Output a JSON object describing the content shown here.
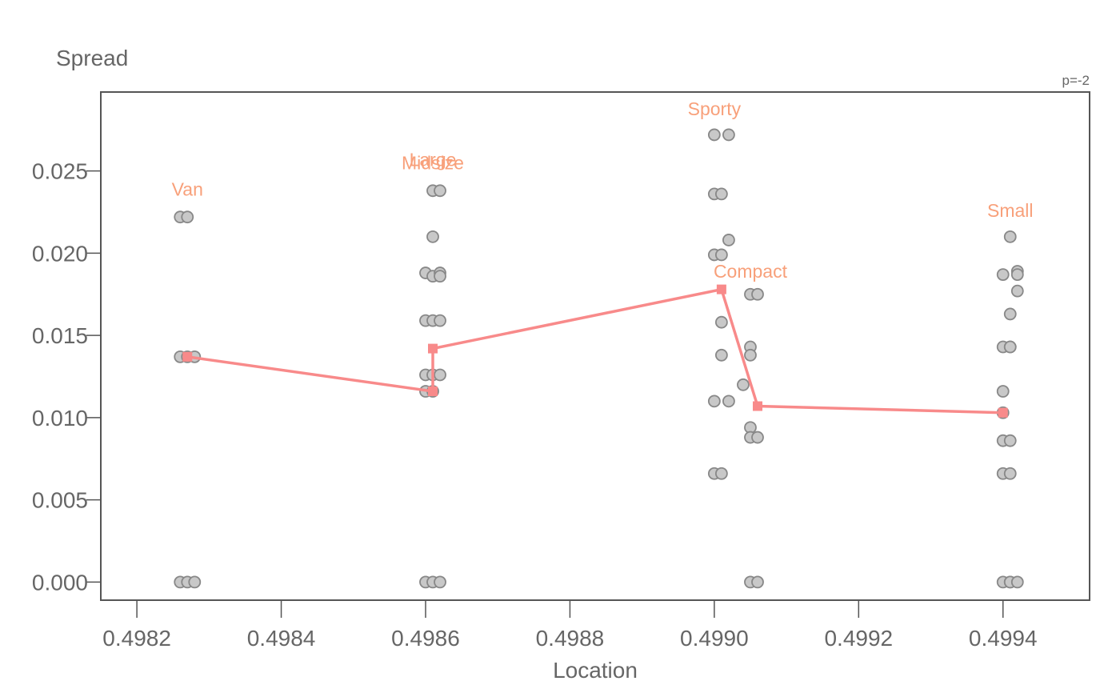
{
  "chart_data": {
    "type": "scatter",
    "ylabel": "Spread",
    "xlabel": "Location",
    "annotation": "p=-2",
    "xlim": [
      0.49815,
      0.49952
    ],
    "ylim": [
      -0.0011,
      0.0298
    ],
    "xticks": [
      0.4982,
      0.4984,
      0.4986,
      0.4988,
      0.499,
      0.4992,
      0.4994
    ],
    "xtick_labels": [
      "0.4982",
      "0.4984",
      "0.4986",
      "0.4988",
      "0.4990",
      "0.4992",
      "0.4994"
    ],
    "yticks": [
      0.0,
      0.005,
      0.01,
      0.015,
      0.02,
      0.025
    ],
    "ytick_labels": [
      "0.000",
      "0.005",
      "0.010",
      "0.015",
      "0.020",
      "0.025"
    ],
    "colors": {
      "points": "#c8c8c8",
      "point_stroke": "#888888",
      "line": "#f88a8a",
      "labels": "#f8a07a",
      "axis": "#555555",
      "text": "#666666"
    },
    "points": [
      [
        0.49826,
        0.0222
      ],
      [
        0.49827,
        0.0222
      ],
      [
        0.49826,
        0.0137
      ],
      [
        0.49827,
        0.0137
      ],
      [
        0.49828,
        0.0137
      ],
      [
        0.49826,
        0.0
      ],
      [
        0.49827,
        0.0
      ],
      [
        0.49828,
        0.0
      ],
      [
        0.49861,
        0.0238
      ],
      [
        0.49862,
        0.0238
      ],
      [
        0.49861,
        0.021
      ],
      [
        0.4986,
        0.0188
      ],
      [
        0.49861,
        0.0186
      ],
      [
        0.49862,
        0.0188
      ],
      [
        0.49862,
        0.0186
      ],
      [
        0.4986,
        0.0159
      ],
      [
        0.49861,
        0.0159
      ],
      [
        0.49862,
        0.0159
      ],
      [
        0.4986,
        0.0126
      ],
      [
        0.49861,
        0.0126
      ],
      [
        0.49862,
        0.0126
      ],
      [
        0.4986,
        0.0116
      ],
      [
        0.49861,
        0.0116
      ],
      [
        0.4986,
        0.0
      ],
      [
        0.49861,
        0.0
      ],
      [
        0.49862,
        0.0
      ],
      [
        0.499,
        0.0272
      ],
      [
        0.49902,
        0.0272
      ],
      [
        0.499,
        0.0236
      ],
      [
        0.49901,
        0.0236
      ],
      [
        0.49902,
        0.0208
      ],
      [
        0.499,
        0.0199
      ],
      [
        0.49901,
        0.0199
      ],
      [
        0.49901,
        0.0158
      ],
      [
        0.49901,
        0.0138
      ],
      [
        0.499,
        0.011
      ],
      [
        0.49902,
        0.011
      ],
      [
        0.499,
        0.0066
      ],
      [
        0.49901,
        0.0066
      ],
      [
        0.49905,
        0.0175
      ],
      [
        0.49906,
        0.0175
      ],
      [
        0.49905,
        0.0143
      ],
      [
        0.49905,
        0.0138
      ],
      [
        0.49904,
        0.012
      ],
      [
        0.49905,
        0.0094
      ],
      [
        0.49905,
        0.0088
      ],
      [
        0.49906,
        0.0088
      ],
      [
        0.49905,
        0.0
      ],
      [
        0.49906,
        0.0
      ],
      [
        0.49941,
        0.021
      ],
      [
        0.4994,
        0.0187
      ],
      [
        0.49942,
        0.0189
      ],
      [
        0.49942,
        0.0187
      ],
      [
        0.49942,
        0.0177
      ],
      [
        0.49941,
        0.0163
      ],
      [
        0.4994,
        0.0143
      ],
      [
        0.49941,
        0.0143
      ],
      [
        0.49941,
        0.0143
      ],
      [
        0.4994,
        0.0116
      ],
      [
        0.4994,
        0.0103
      ],
      [
        0.4994,
        0.0086
      ],
      [
        0.49941,
        0.0086
      ],
      [
        0.4994,
        0.0066
      ],
      [
        0.49941,
        0.0066
      ],
      [
        0.4994,
        0.0
      ],
      [
        0.49941,
        0.0
      ],
      [
        0.49941,
        0.0
      ],
      [
        0.49942,
        0.0
      ]
    ],
    "line": [
      [
        0.49827,
        0.0137
      ],
      [
        0.49861,
        0.0116
      ],
      [
        0.49861,
        0.0142
      ],
      [
        0.49901,
        0.0178
      ],
      [
        0.49906,
        0.0107
      ],
      [
        0.4994,
        0.0103
      ]
    ],
    "group_labels": [
      {
        "text": "Van",
        "x": 0.49827,
        "y": 0.0235
      },
      {
        "text": "Large",
        "x": 0.49861,
        "y": 0.0253
      },
      {
        "text": "Midsize",
        "x": 0.49861,
        "y": 0.0251
      },
      {
        "text": "Sporty",
        "x": 0.499,
        "y": 0.0284
      },
      {
        "text": "Compact",
        "x": 0.49905,
        "y": 0.0185
      },
      {
        "text": "Small",
        "x": 0.49941,
        "y": 0.0222
      }
    ]
  }
}
